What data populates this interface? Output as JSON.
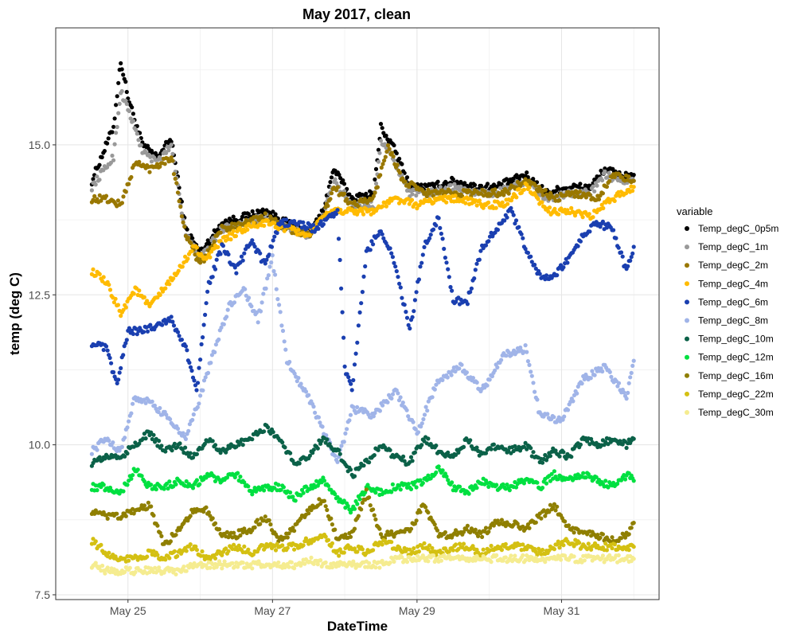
{
  "chart_data": {
    "type": "scatter",
    "title": "May 2017, clean",
    "xlabel": "DateTime",
    "ylabel": "temp (deg C)",
    "x_unit": "days",
    "xlim": [
      24.0,
      32.35
    ],
    "ylim": [
      7.42,
      16.95
    ],
    "x_ticks": [
      {
        "value": 25,
        "label": "May 25"
      },
      {
        "value": 27,
        "label": "May 27"
      },
      {
        "value": 29,
        "label": "May 29"
      },
      {
        "value": 31,
        "label": "May 31"
      }
    ],
    "y_ticks": [
      {
        "value": 7.5,
        "label": "7.5"
      },
      {
        "value": 10.0,
        "label": "10.0"
      },
      {
        "value": 12.5,
        "label": "12.5"
      },
      {
        "value": 15.0,
        "label": "15.0"
      }
    ],
    "grid": true,
    "legend": {
      "title": "variable",
      "position": "right"
    },
    "series": [
      {
        "name": "Temp_degC_0p5m",
        "color": "#000000",
        "x": [
          24.5,
          24.8,
          24.9,
          25.0,
          25.2,
          25.4,
          25.6,
          25.8,
          26.0,
          26.3,
          26.6,
          26.9,
          27.2,
          27.5,
          27.7,
          27.85,
          28.1,
          28.4,
          28.5,
          28.7,
          28.9,
          29.2,
          29.5,
          29.8,
          30.1,
          30.5,
          30.8,
          31.1,
          31.4,
          31.6,
          31.8,
          32.0
        ],
        "y": [
          14.4,
          15.3,
          16.4,
          15.8,
          15.0,
          14.8,
          15.1,
          13.6,
          13.2,
          13.7,
          13.8,
          13.9,
          13.7,
          13.5,
          13.9,
          14.6,
          14.1,
          14.2,
          15.3,
          14.9,
          14.3,
          14.3,
          14.4,
          14.3,
          14.3,
          14.5,
          14.2,
          14.3,
          14.3,
          14.6,
          14.5,
          14.5
        ]
      },
      {
        "name": "Temp_degC_1m",
        "color": "#999999",
        "x": [
          24.5,
          24.8,
          24.9,
          25.0,
          25.2,
          25.4,
          25.6,
          25.8,
          26.0,
          26.3,
          26.6,
          26.9,
          27.2,
          27.5,
          27.7,
          27.85,
          28.1,
          28.4,
          28.5,
          28.7,
          28.9,
          29.2,
          29.5,
          29.8,
          30.1,
          30.5,
          30.8,
          31.1,
          31.4,
          31.6,
          31.8,
          32.0
        ],
        "y": [
          14.3,
          14.8,
          15.9,
          15.6,
          14.9,
          14.7,
          15.0,
          13.5,
          13.1,
          13.6,
          13.7,
          13.8,
          13.6,
          13.5,
          13.8,
          14.4,
          14.0,
          14.0,
          15.1,
          14.7,
          14.2,
          14.2,
          14.3,
          14.2,
          14.2,
          14.4,
          14.1,
          14.2,
          14.2,
          14.5,
          14.4,
          14.4
        ]
      },
      {
        "name": "Temp_degC_2m",
        "color": "#997700",
        "x": [
          24.5,
          24.7,
          24.9,
          25.1,
          25.3,
          25.6,
          25.8,
          26.0,
          26.3,
          26.6,
          26.9,
          27.2,
          27.5,
          27.7,
          27.85,
          28.1,
          28.4,
          28.6,
          28.8,
          29.1,
          29.4,
          29.8,
          30.2,
          30.5,
          30.9,
          31.2,
          31.5,
          31.7,
          32.0
        ],
        "y": [
          14.1,
          14.1,
          14.0,
          14.7,
          14.6,
          14.8,
          13.5,
          13.0,
          13.6,
          13.7,
          13.8,
          13.6,
          13.5,
          13.8,
          14.3,
          14.0,
          14.1,
          15.0,
          14.4,
          14.2,
          14.2,
          14.2,
          14.2,
          14.4,
          14.1,
          14.2,
          14.1,
          14.5,
          14.4
        ]
      },
      {
        "name": "Temp_degC_4m",
        "color": "#ffbb00",
        "x": [
          24.5,
          24.7,
          24.9,
          25.1,
          25.3,
          25.5,
          25.7,
          25.9,
          26.1,
          26.3,
          26.6,
          26.9,
          27.2,
          27.5,
          27.8,
          28.1,
          28.4,
          28.7,
          29.0,
          29.3,
          29.6,
          29.9,
          30.2,
          30.5,
          30.8,
          31.1,
          31.4,
          31.7,
          32.0
        ],
        "y": [
          12.9,
          12.7,
          12.2,
          12.6,
          12.3,
          12.6,
          12.9,
          13.3,
          13.1,
          13.4,
          13.6,
          13.7,
          13.6,
          13.5,
          13.9,
          13.9,
          13.9,
          14.1,
          14.0,
          14.1,
          14.1,
          14.0,
          14.0,
          14.3,
          13.9,
          13.9,
          13.8,
          14.1,
          14.3
        ]
      },
      {
        "name": "Temp_degC_6m",
        "color": "#1a3fb0",
        "x": [
          24.5,
          24.7,
          24.85,
          25.0,
          25.2,
          25.4,
          25.6,
          25.8,
          25.95,
          26.1,
          26.3,
          26.5,
          26.7,
          26.9,
          27.1,
          27.3,
          27.6,
          27.9,
          28.0,
          28.1,
          28.3,
          28.5,
          28.7,
          28.9,
          29.1,
          29.3,
          29.5,
          29.7,
          29.9,
          30.1,
          30.3,
          30.5,
          30.7,
          30.9,
          31.1,
          31.3,
          31.5,
          31.7,
          31.9,
          32.0
        ],
        "y": [
          11.7,
          11.6,
          11.0,
          11.9,
          11.9,
          12.0,
          12.1,
          11.6,
          10.9,
          12.6,
          13.3,
          12.9,
          13.4,
          13.0,
          13.7,
          13.7,
          13.6,
          13.9,
          11.3,
          10.9,
          13.2,
          13.6,
          13.0,
          11.9,
          13.3,
          13.8,
          12.4,
          12.4,
          13.3,
          13.6,
          13.9,
          13.3,
          12.8,
          12.8,
          13.1,
          13.5,
          13.7,
          13.6,
          12.9,
          13.3
        ]
      },
      {
        "name": "Temp_degC_8m",
        "color": "#a0b4e8",
        "x": [
          24.5,
          24.7,
          24.9,
          25.1,
          25.3,
          25.6,
          25.8,
          26.0,
          26.2,
          26.4,
          26.6,
          26.8,
          27.0,
          27.2,
          27.5,
          27.9,
          28.1,
          28.4,
          28.7,
          29.0,
          29.3,
          29.6,
          29.9,
          30.2,
          30.5,
          30.7,
          31.0,
          31.3,
          31.6,
          31.9,
          32.0
        ],
        "y": [
          9.9,
          10.1,
          9.9,
          10.8,
          10.7,
          10.4,
          10.1,
          10.8,
          11.6,
          12.3,
          12.6,
          12.1,
          13.1,
          11.4,
          10.8,
          9.7,
          10.6,
          10.5,
          10.9,
          10.2,
          11.1,
          11.3,
          10.9,
          11.5,
          11.6,
          10.5,
          10.4,
          11.1,
          11.3,
          10.8,
          11.4
        ]
      },
      {
        "name": "Temp_degC_10m",
        "color": "#0b6148",
        "x": [
          24.5,
          24.7,
          24.9,
          25.1,
          25.3,
          25.5,
          25.7,
          25.9,
          26.1,
          26.3,
          26.5,
          26.7,
          26.9,
          27.1,
          27.3,
          27.5,
          27.7,
          27.9,
          28.1,
          28.3,
          28.5,
          28.7,
          28.9,
          29.1,
          29.3,
          29.5,
          29.7,
          29.9,
          30.1,
          30.3,
          30.5,
          30.7,
          30.9,
          31.1,
          31.3,
          31.5,
          31.7,
          31.9,
          32.0
        ],
        "y": [
          9.7,
          9.8,
          9.8,
          10.0,
          10.2,
          9.9,
          10.0,
          9.8,
          10.1,
          9.9,
          10.0,
          10.1,
          10.3,
          10.1,
          9.7,
          9.8,
          10.1,
          9.9,
          9.5,
          9.7,
          10.0,
          9.8,
          9.7,
          10.1,
          9.9,
          9.8,
          10.1,
          9.8,
          10.0,
          9.9,
          10.0,
          9.7,
          9.9,
          9.8,
          10.1,
          10.0,
          10.1,
          10.0,
          10.1
        ]
      },
      {
        "name": "Temp_degC_12m",
        "color": "#00e040",
        "x": [
          24.5,
          24.7,
          24.9,
          25.1,
          25.3,
          25.5,
          25.7,
          25.9,
          26.1,
          26.3,
          26.5,
          26.7,
          26.9,
          27.1,
          27.3,
          27.5,
          27.7,
          27.9,
          28.1,
          28.3,
          28.5,
          28.7,
          28.9,
          29.1,
          29.3,
          29.5,
          29.7,
          29.9,
          30.1,
          30.3,
          30.5,
          30.7,
          30.9,
          31.1,
          31.3,
          31.5,
          31.7,
          31.9,
          32.0
        ],
        "y": [
          9.3,
          9.3,
          9.2,
          9.6,
          9.3,
          9.3,
          9.4,
          9.3,
          9.5,
          9.4,
          9.5,
          9.2,
          9.3,
          9.3,
          9.1,
          9.3,
          9.4,
          9.1,
          8.9,
          9.3,
          9.2,
          9.3,
          9.3,
          9.4,
          9.6,
          9.3,
          9.2,
          9.4,
          9.3,
          9.3,
          9.4,
          9.3,
          9.5,
          9.4,
          9.5,
          9.4,
          9.3,
          9.5,
          9.4
        ]
      },
      {
        "name": "Temp_degC_16m",
        "color": "#8f7f00",
        "x": [
          24.5,
          24.7,
          24.9,
          25.1,
          25.3,
          25.5,
          25.7,
          25.9,
          26.1,
          26.3,
          26.5,
          26.7,
          26.9,
          27.1,
          27.3,
          27.5,
          27.7,
          27.9,
          28.1,
          28.3,
          28.5,
          28.7,
          28.9,
          29.1,
          29.3,
          29.5,
          29.7,
          29.9,
          30.1,
          30.3,
          30.5,
          30.7,
          30.9,
          31.1,
          31.3,
          31.5,
          31.7,
          31.9,
          32.0
        ],
        "y": [
          8.9,
          8.8,
          8.8,
          8.9,
          9.0,
          8.3,
          8.6,
          8.9,
          8.9,
          8.5,
          8.5,
          8.6,
          8.8,
          8.4,
          8.6,
          8.9,
          9.1,
          8.4,
          8.5,
          9.2,
          8.5,
          8.5,
          8.6,
          9.0,
          8.5,
          8.5,
          8.6,
          8.5,
          8.7,
          8.7,
          8.6,
          8.8,
          9.0,
          8.6,
          8.5,
          8.5,
          8.4,
          8.5,
          8.7
        ]
      },
      {
        "name": "Temp_degC_22m",
        "color": "#d4c012",
        "x": [
          24.5,
          24.7,
          24.9,
          25.1,
          25.3,
          25.5,
          25.7,
          25.9,
          26.1,
          26.3,
          26.5,
          26.7,
          26.9,
          27.1,
          27.3,
          27.5,
          27.7,
          27.9,
          28.1,
          28.3,
          28.5,
          28.7,
          28.9,
          29.1,
          29.3,
          29.5,
          29.7,
          29.9,
          30.1,
          30.3,
          30.5,
          30.7,
          30.9,
          31.1,
          31.3,
          31.5,
          31.7,
          31.9,
          32.0
        ],
        "y": [
          8.4,
          8.2,
          8.1,
          8.1,
          8.2,
          8.1,
          8.2,
          8.3,
          8.1,
          8.2,
          8.3,
          8.2,
          8.3,
          8.3,
          8.3,
          8.4,
          8.5,
          8.2,
          8.3,
          8.2,
          8.4,
          8.3,
          8.2,
          8.3,
          8.2,
          8.3,
          8.3,
          8.2,
          8.3,
          8.3,
          8.3,
          8.2,
          8.3,
          8.4,
          8.3,
          8.3,
          8.3,
          8.3,
          8.3
        ]
      },
      {
        "name": "Temp_degC_30m",
        "color": "#f5ec90",
        "x": [
          24.5,
          24.7,
          24.9,
          25.1,
          25.3,
          25.5,
          25.7,
          25.9,
          26.1,
          26.3,
          26.5,
          26.7,
          26.9,
          27.1,
          27.3,
          27.5,
          27.7,
          27.9,
          28.1,
          28.3,
          28.5,
          28.7,
          28.9,
          29.1,
          29.3,
          29.5,
          29.7,
          29.9,
          30.1,
          30.3,
          30.5,
          30.7,
          30.9,
          31.1,
          31.3,
          31.5,
          31.7,
          31.9,
          32.0
        ],
        "y": [
          8.0,
          7.9,
          7.9,
          7.9,
          7.9,
          7.9,
          7.9,
          8.0,
          8.0,
          8.0,
          8.0,
          8.0,
          8.0,
          8.0,
          8.0,
          8.1,
          8.0,
          8.0,
          8.0,
          8.0,
          8.0,
          8.1,
          8.1,
          8.1,
          8.1,
          8.1,
          8.1,
          8.1,
          8.1,
          8.1,
          8.1,
          8.1,
          8.1,
          8.1,
          8.1,
          8.1,
          8.1,
          8.1,
          8.1
        ]
      }
    ]
  }
}
